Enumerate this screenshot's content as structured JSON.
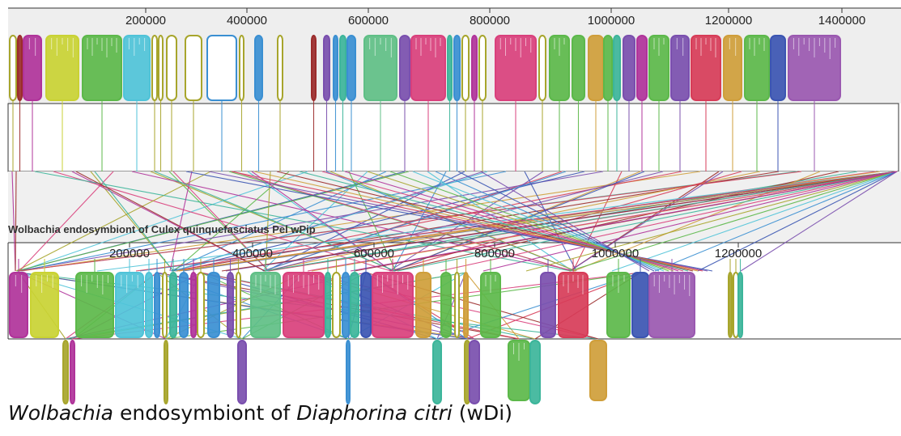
{
  "top_genome": {
    "ticks": [
      "200000",
      "400000",
      "600000",
      "800000",
      "1000000",
      "1200000",
      "1400000"
    ]
  },
  "middle_genome": {
    "title": "Wolbachia endosymbiont of Culex quinquefasciatus Pel wPip",
    "ticks": [
      "200000",
      "400000",
      "600000",
      "800000",
      "1000000",
      "1200000"
    ]
  },
  "caption": {
    "genus": "Wolbachia",
    "middle": " endosymbiont of ",
    "species": "Diaphorina citri",
    "strain": " (wDi)"
  },
  "colors": {
    "magenta": "#b0339a",
    "yellow": "#c9d233",
    "green": "#5cb84a",
    "cyan": "#4fc3d8",
    "olive": "#a7a52c",
    "blue": "#3a8fd2",
    "teal": "#3cb59a",
    "seagreen": "#5fbf86",
    "pink": "#d9407c",
    "orange": "#cf9e3a",
    "purple": "#7a4fae",
    "red": "#d73c58",
    "navy": "#3b55b2",
    "violet": "#9a58b0",
    "darkred": "#9b2b2b"
  }
}
